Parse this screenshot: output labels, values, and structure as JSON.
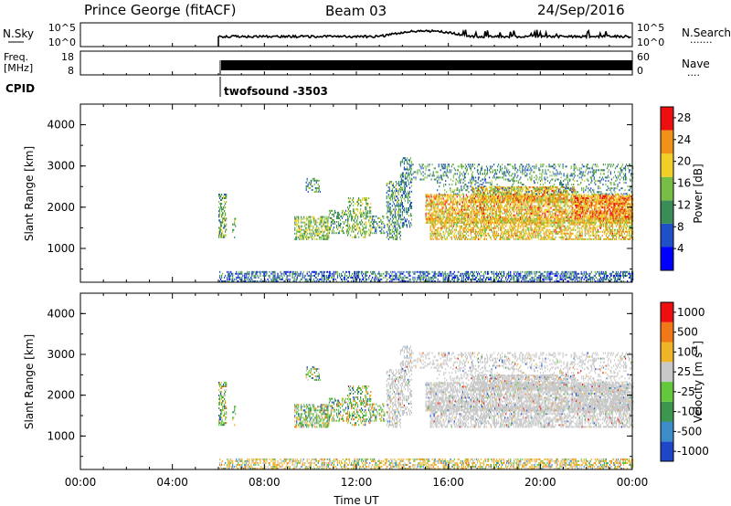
{
  "header": {
    "station": "Prince George (fitACF)",
    "beam": "Beam 03",
    "date": "24/Sep/2016"
  },
  "strip_panels": {
    "nsky": {
      "label": "N.Sky",
      "tick_top": "10^5",
      "tick_bottom": "10^0",
      "right_label": "N.Search",
      "right_dots": "·······",
      "right_tick_top": "10^5",
      "right_tick_bottom": "10^0"
    },
    "freq": {
      "label_line1": "Freq.",
      "label_line2": "[MHz]",
      "tick_top": "18",
      "tick_bottom": "8",
      "right_label": "Nave",
      "right_dots": "····",
      "right_tick_top": "60",
      "right_tick_bottom": "0"
    },
    "cpid": {
      "label": "CPID",
      "program": "twofsound -3503"
    }
  },
  "chart_data": [
    {
      "type": "heatmap",
      "quantity": "power",
      "xlabel": "",
      "ylabel": "Slant Range [km]",
      "xlim": [
        0,
        24
      ],
      "ylim": [
        180,
        4500
      ],
      "yticks": [
        "1000",
        "2000",
        "3000",
        "4000"
      ],
      "colorbar": {
        "label": "Power [dB]",
        "ticks": [
          "4",
          "8",
          "12",
          "16",
          "20",
          "24",
          "28"
        ],
        "range": [
          0,
          30
        ],
        "colors": [
          "#0000ff",
          "#2050c8",
          "#3c8c5a",
          "#78be46",
          "#f0d028",
          "#f09018",
          "#ee1010"
        ]
      }
    },
    {
      "type": "heatmap",
      "quantity": "velocity",
      "xlabel": "Time UT",
      "ylabel": "Slant Range [km]",
      "xlim": [
        0,
        24
      ],
      "ylim": [
        180,
        4500
      ],
      "xticks": [
        "00:00",
        "04:00",
        "08:00",
        "12:00",
        "16:00",
        "20:00",
        "00:00"
      ],
      "yticks": [
        "1000",
        "2000",
        "3000",
        "4000"
      ],
      "colorbar": {
        "label": "Velocity [m s",
        "label_exponent": "-1",
        "label_close": "]",
        "ticks": [
          "1000",
          "500",
          "100",
          "25",
          "-25",
          "-100",
          "-500",
          "-1000"
        ],
        "colors": [
          "#1e46c8",
          "#3c8cc8",
          "#3c9650",
          "#64c83c",
          "#c8c8c8",
          "#f0b428",
          "#f07818",
          "#ee1010"
        ]
      }
    }
  ],
  "colors": {
    "ground_scatter": "#c8c8c8",
    "axis": "#000000"
  }
}
